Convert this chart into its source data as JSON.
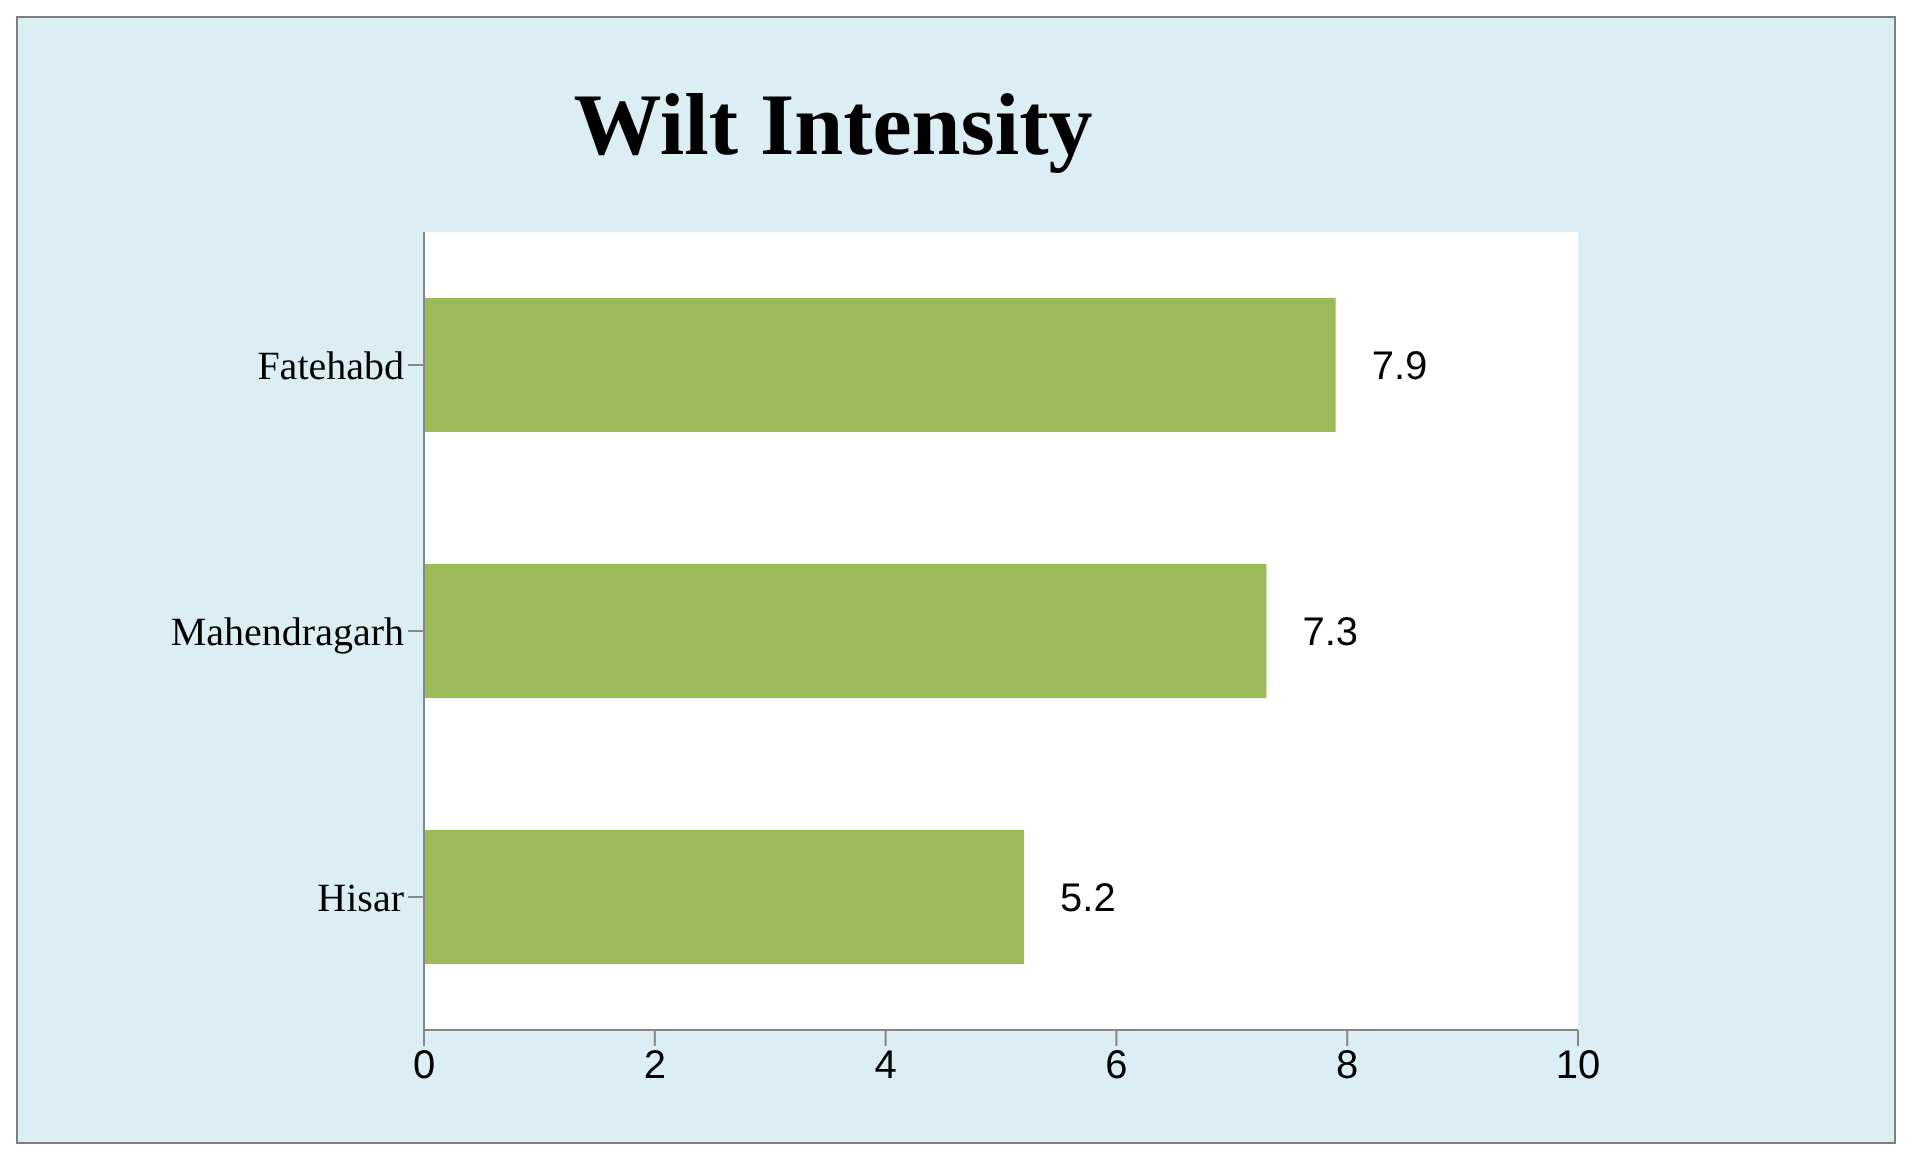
{
  "chart_data": {
    "type": "bar",
    "orientation": "horizontal",
    "title": "Wilt Intensity",
    "categories": [
      "Fatehabd",
      "Mahendragarh",
      "Hisar"
    ],
    "values": [
      7.9,
      7.3,
      5.2
    ],
    "color": "#9bbb59",
    "xlim": [
      0,
      10
    ],
    "xticks": [
      0,
      2,
      4,
      6,
      8,
      10
    ],
    "data_labels": true,
    "grid": false
  }
}
